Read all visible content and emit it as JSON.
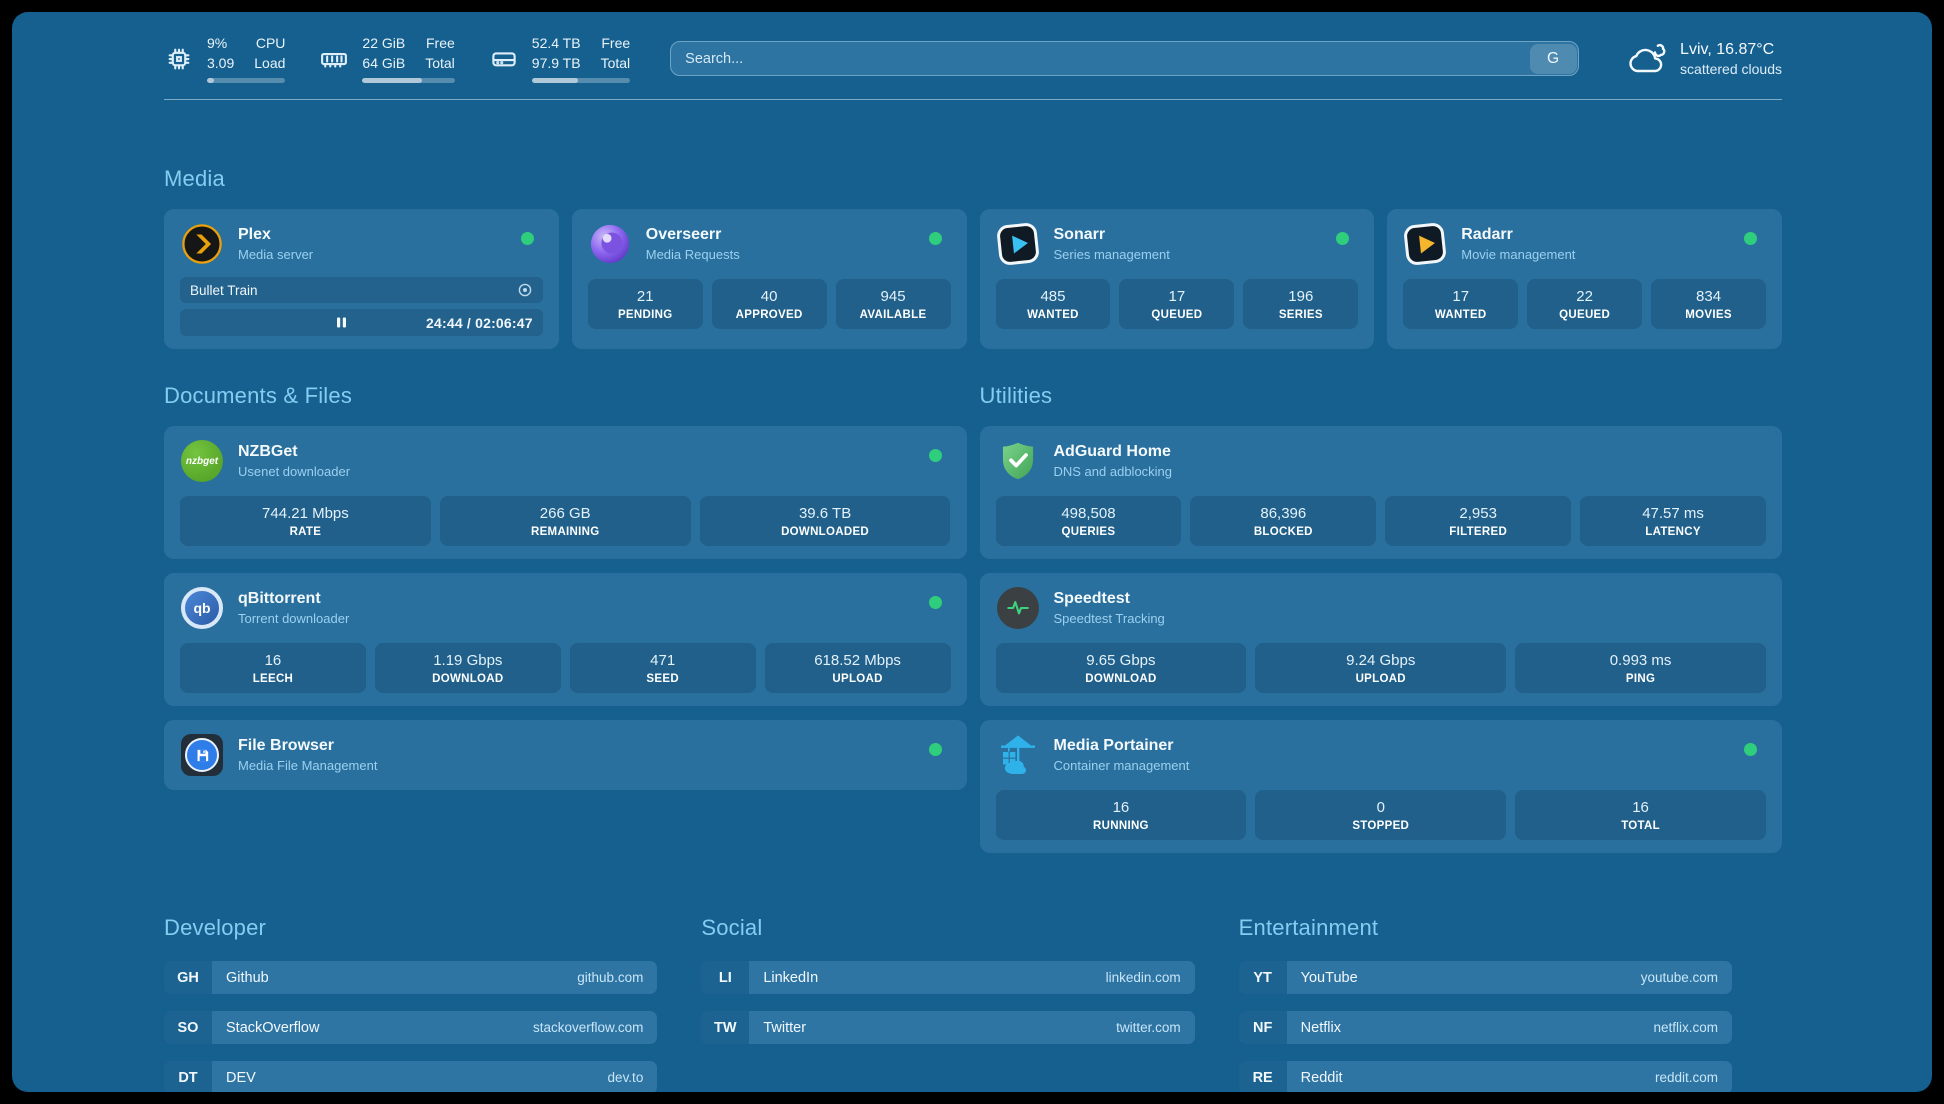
{
  "colors": {
    "status_online": "#2FCE7C",
    "accent": "#84CDF2",
    "panel_bg": "#15608F",
    "card_bg": "#29709E"
  },
  "header": {
    "resources": [
      {
        "icon": "cpu-icon",
        "values": [
          "9%",
          "3.09"
        ],
        "labels": [
          "CPU",
          "Load"
        ],
        "progress_pct": 9
      },
      {
        "icon": "ram-icon",
        "values": [
          "22 GiB",
          "64 GiB"
        ],
        "labels": [
          "Free",
          "Total"
        ],
        "progress_pct": 65
      },
      {
        "icon": "disk-icon",
        "values": [
          "52.4 TB",
          "97.9 TB"
        ],
        "labels": [
          "Free",
          "Total"
        ],
        "progress_pct": 47
      }
    ],
    "search": {
      "placeholder": "Search...",
      "provider_button": "G"
    },
    "weather": {
      "icon": "cloud-icon",
      "headline": "Lviv, 16.87°C",
      "condition": "scattered clouds"
    }
  },
  "groups": {
    "media": {
      "title": "Media",
      "plex": {
        "icon": "plex-icon",
        "name": "Plex",
        "description": "Media server",
        "online": true,
        "now_playing": {
          "title": "Bullet Train",
          "elapsed": "24:44",
          "duration": "02:06:47",
          "time_display": "24:44 / 02:06:47",
          "progress_pct": 19.5
        }
      },
      "overseerr": {
        "icon": "overseerr-icon",
        "name": "Overseerr",
        "description": "Media Requests",
        "online": true,
        "stats": [
          {
            "value": "21",
            "label": "PENDING"
          },
          {
            "value": "40",
            "label": "APPROVED"
          },
          {
            "value": "945",
            "label": "AVAILABLE"
          }
        ]
      },
      "sonarr": {
        "icon": "sonarr-icon",
        "name": "Sonarr",
        "description": "Series management",
        "online": true,
        "stats": [
          {
            "value": "485",
            "label": "WANTED"
          },
          {
            "value": "17",
            "label": "QUEUED"
          },
          {
            "value": "196",
            "label": "SERIES"
          }
        ]
      },
      "radarr": {
        "icon": "radarr-icon",
        "name": "Radarr",
        "description": "Movie management",
        "online": true,
        "stats": [
          {
            "value": "17",
            "label": "WANTED"
          },
          {
            "value": "22",
            "label": "QUEUED"
          },
          {
            "value": "834",
            "label": "MOVIES"
          }
        ]
      }
    },
    "documents": {
      "title": "Documents & Files",
      "nzbget": {
        "icon": "nzbget-icon",
        "icon_text": "nzbget",
        "name": "NZBGet",
        "description": "Usenet downloader",
        "online": true,
        "stats": [
          {
            "value": "744.21 Mbps",
            "label": "RATE"
          },
          {
            "value": "266 GB",
            "label": "REMAINING"
          },
          {
            "value": "39.6 TB",
            "label": "DOWNLOADED"
          }
        ]
      },
      "qbittorrent": {
        "icon": "qbittorrent-icon",
        "icon_text": "qb",
        "name": "qBittorrent",
        "description": "Torrent downloader",
        "online": true,
        "stats": [
          {
            "value": "16",
            "label": "LEECH"
          },
          {
            "value": "1.19 Gbps",
            "label": "DOWNLOAD"
          },
          {
            "value": "471",
            "label": "SEED"
          },
          {
            "value": "618.52 Mbps",
            "label": "UPLOAD"
          }
        ]
      },
      "filebrowser": {
        "icon": "filebrowser-icon",
        "name": "File Browser",
        "description": "Media File Management",
        "online": true
      }
    },
    "utilities": {
      "title": "Utilities",
      "adguard": {
        "icon": "adguard-icon",
        "name": "AdGuard Home",
        "description": "DNS and adblocking",
        "stats": [
          {
            "value": "498,508",
            "label": "QUERIES"
          },
          {
            "value": "86,396",
            "label": "BLOCKED"
          },
          {
            "value": "2,953",
            "label": "FILTERED"
          },
          {
            "value": "47.57 ms",
            "label": "LATENCY"
          }
        ]
      },
      "speedtest": {
        "icon": "speedtest-icon",
        "name": "Speedtest",
        "description": "Speedtest Tracking",
        "stats": [
          {
            "value": "9.65 Gbps",
            "label": "DOWNLOAD"
          },
          {
            "value": "9.24 Gbps",
            "label": "UPLOAD"
          },
          {
            "value": "0.993 ms",
            "label": "PING"
          }
        ]
      },
      "portainer": {
        "icon": "portainer-icon",
        "name": "Media Portainer",
        "description": "Container management",
        "online": true,
        "stats": [
          {
            "value": "16",
            "label": "RUNNING"
          },
          {
            "value": "0",
            "label": "STOPPED"
          },
          {
            "value": "16",
            "label": "TOTAL"
          }
        ]
      }
    },
    "bookmarks": [
      {
        "title": "Developer",
        "links": [
          {
            "abbr": "GH",
            "name": "Github",
            "domain": "github.com"
          },
          {
            "abbr": "SO",
            "name": "StackOverflow",
            "domain": "stackoverflow.com"
          },
          {
            "abbr": "DT",
            "name": "DEV",
            "domain": "dev.to"
          }
        ]
      },
      {
        "title": "Social",
        "links": [
          {
            "abbr": "LI",
            "name": "LinkedIn",
            "domain": "linkedin.com"
          },
          {
            "abbr": "TW",
            "name": "Twitter",
            "domain": "twitter.com"
          }
        ]
      },
      {
        "title": "Entertainment",
        "links": [
          {
            "abbr": "YT",
            "name": "YouTube",
            "domain": "youtube.com"
          },
          {
            "abbr": "NF",
            "name": "Netflix",
            "domain": "netflix.com"
          },
          {
            "abbr": "RE",
            "name": "Reddit",
            "domain": "reddit.com"
          }
        ]
      }
    ]
  }
}
